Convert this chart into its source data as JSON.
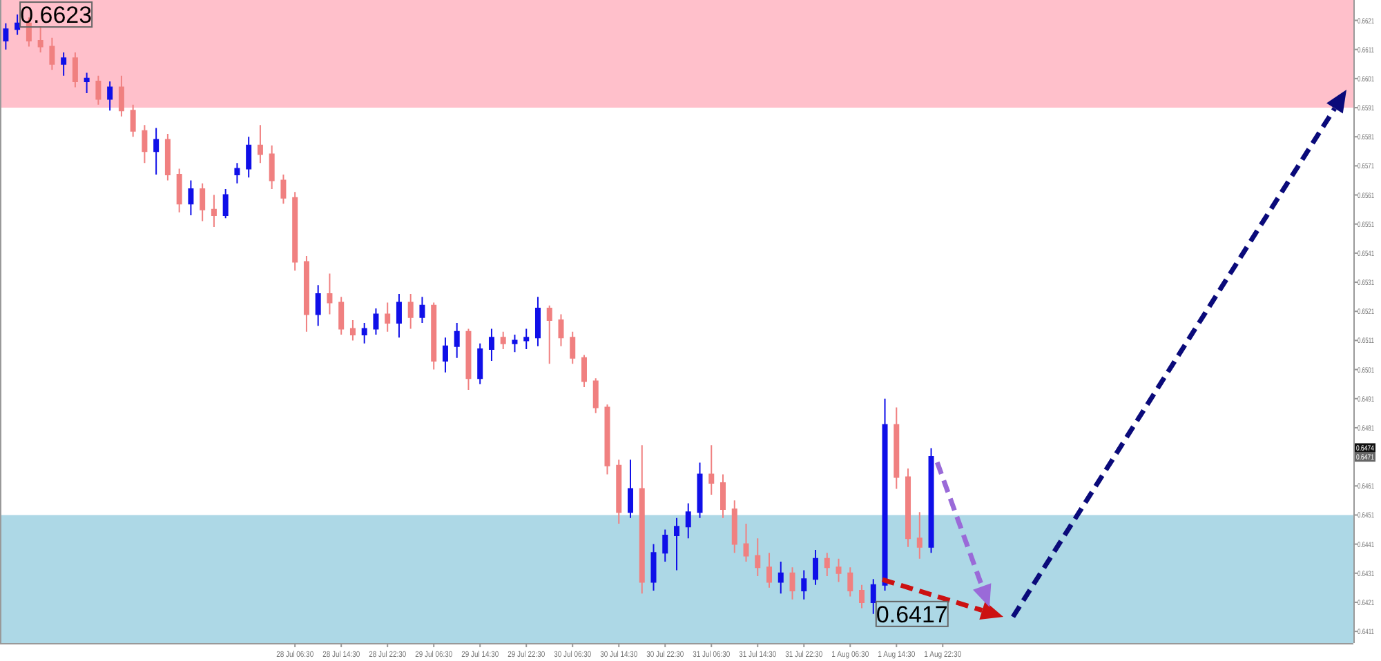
{
  "chart_data": {
    "type": "candlestick",
    "categories": [
      null,
      null,
      null,
      null,
      null,
      null,
      null,
      null,
      null,
      null,
      null,
      null,
      null,
      null,
      null,
      null,
      null,
      null,
      null,
      null,
      null,
      null,
      null,
      null,
      null,
      "28 Jul 06:30",
      null,
      null,
      null,
      "28 Jul 14:30",
      null,
      null,
      null,
      "28 Jul 22:30",
      null,
      null,
      null,
      "29 Jul 06:30",
      null,
      null,
      null,
      "29 Jul 14:30",
      null,
      null,
      null,
      "29 Jul 22:30",
      null,
      null,
      null,
      "30 Jul 06:30",
      null,
      null,
      null,
      "30 Jul 14:30",
      null,
      null,
      null,
      "30 Jul 22:30",
      null,
      null,
      null,
      "31 Jul 06:30",
      null,
      null,
      null,
      "31 Jul 14:30",
      null,
      null,
      null,
      "31 Jul 22:30",
      null,
      null,
      null,
      "1 Aug 06:30",
      null,
      null,
      null,
      "1 Aug 14:30",
      null,
      null,
      null,
      "1 Aug 22:30",
      null,
      null,
      null,
      null,
      null,
      null,
      null,
      null,
      null,
      null,
      null,
      null,
      null,
      null,
      null,
      null,
      null,
      null,
      null,
      null,
      null,
      null,
      null,
      null,
      null,
      null,
      null,
      null,
      null,
      null,
      null,
      null,
      null,
      null,
      null
    ],
    "ohlc": [
      [
        0.6614,
        0.662,
        0.6611,
        0.6618
      ],
      [
        0.6618,
        0.6623,
        0.6616,
        0.662
      ],
      [
        0.662,
        0.6622,
        0.6612,
        0.6614
      ],
      [
        0.6614,
        0.6619,
        0.661,
        0.6612
      ],
      [
        0.6612,
        0.6615,
        0.6604,
        0.6606
      ],
      [
        0.6606,
        0.661,
        0.6602,
        0.6608
      ],
      [
        0.6608,
        0.661,
        0.6598,
        0.66
      ],
      [
        0.66,
        0.6603,
        0.6596,
        0.6601
      ],
      [
        0.66,
        0.6602,
        0.6592,
        0.6594
      ],
      [
        0.6594,
        0.66,
        0.659,
        0.6598
      ],
      [
        0.6598,
        0.6602,
        0.6588,
        0.659
      ],
      [
        0.659,
        0.6592,
        0.6581,
        0.6583
      ],
      [
        0.6583,
        0.6585,
        0.6572,
        0.6576
      ],
      [
        0.6576,
        0.6584,
        0.6568,
        0.658
      ],
      [
        0.658,
        0.6582,
        0.6566,
        0.6568
      ],
      [
        0.6568,
        0.657,
        0.6555,
        0.6558
      ],
      [
        0.6558,
        0.6566,
        0.6554,
        0.6563
      ],
      [
        0.6563,
        0.6565,
        0.6552,
        0.6556
      ],
      [
        0.6556,
        0.6561,
        0.655,
        0.6554
      ],
      [
        0.6554,
        0.6563,
        0.6553,
        0.6561
      ],
      [
        0.6568,
        0.6572,
        0.6565,
        0.657
      ],
      [
        0.657,
        0.6581,
        0.6567,
        0.6578
      ],
      [
        0.6578,
        0.6585,
        0.6572,
        0.6575
      ],
      [
        0.6575,
        0.6578,
        0.6563,
        0.6566
      ],
      [
        0.6566,
        0.6568,
        0.6558,
        0.656
      ],
      [
        0.656,
        0.6562,
        0.6535,
        0.6538
      ],
      [
        0.6538,
        0.654,
        0.6514,
        0.652
      ],
      [
        0.652,
        0.653,
        0.6516,
        0.6527
      ],
      [
        0.6527,
        0.6534,
        0.652,
        0.6524
      ],
      [
        0.6524,
        0.6526,
        0.6513,
        0.6515
      ],
      [
        0.6515,
        0.6518,
        0.6511,
        0.6513
      ],
      [
        0.6513,
        0.6517,
        0.651,
        0.6515
      ],
      [
        0.6515,
        0.6522,
        0.6513,
        0.652
      ],
      [
        0.652,
        0.6524,
        0.6514,
        0.6517
      ],
      [
        0.6517,
        0.6527,
        0.6512,
        0.6524
      ],
      [
        0.6524,
        0.6527,
        0.6515,
        0.6519
      ],
      [
        0.6519,
        0.6526,
        0.6517,
        0.6523
      ],
      [
        0.6523,
        0.6524,
        0.6501,
        0.6504
      ],
      [
        0.6504,
        0.6512,
        0.65,
        0.6509
      ],
      [
        0.6509,
        0.6517,
        0.6505,
        0.6514
      ],
      [
        0.6514,
        0.6515,
        0.6494,
        0.6498
      ],
      [
        0.6498,
        0.651,
        0.6496,
        0.6508
      ],
      [
        0.6508,
        0.6515,
        0.6504,
        0.6512
      ],
      [
        0.6512,
        0.6514,
        0.6508,
        0.651
      ],
      [
        0.651,
        0.6513,
        0.6507,
        0.6511
      ],
      [
        0.6511,
        0.6515,
        0.6508,
        0.6512
      ],
      [
        0.6512,
        0.6526,
        0.6509,
        0.6522
      ],
      [
        0.6522,
        0.6523,
        0.6503,
        0.6518
      ],
      [
        0.6518,
        0.652,
        0.6509,
        0.6512
      ],
      [
        0.6512,
        0.6514,
        0.6503,
        0.6505
      ],
      [
        0.6505,
        0.6506,
        0.6495,
        0.6497
      ],
      [
        0.6497,
        0.6498,
        0.6486,
        0.6488
      ],
      [
        0.6488,
        0.6489,
        0.6465,
        0.6468
      ],
      [
        0.6468,
        0.647,
        0.6448,
        0.6452
      ],
      [
        0.6452,
        0.647,
        0.645,
        0.646
      ],
      [
        0.646,
        0.6475,
        0.6424,
        0.6428
      ],
      [
        0.6428,
        0.6441,
        0.6425,
        0.6438
      ],
      [
        0.6438,
        0.6446,
        0.6435,
        0.6444
      ],
      [
        0.6444,
        0.645,
        0.6432,
        0.6447
      ],
      [
        0.6447,
        0.6455,
        0.6443,
        0.6452
      ],
      [
        0.6452,
        0.6469,
        0.645,
        0.6465
      ],
      [
        0.6465,
        0.6475,
        0.6458,
        0.6462
      ],
      [
        0.6462,
        0.6465,
        0.645,
        0.6453
      ],
      [
        0.6453,
        0.6456,
        0.6438,
        0.6441
      ],
      [
        0.6441,
        0.6448,
        0.6435,
        0.6437
      ],
      [
        0.6437,
        0.6443,
        0.643,
        0.6433
      ],
      [
        0.6433,
        0.6438,
        0.6426,
        0.6428
      ],
      [
        0.6428,
        0.6435,
        0.6424,
        0.6431
      ],
      [
        0.6431,
        0.6433,
        0.6422,
        0.6425
      ],
      [
        0.6425,
        0.6432,
        0.6422,
        0.6429
      ],
      [
        0.6429,
        0.6439,
        0.6427,
        0.6436
      ],
      [
        0.6436,
        0.6438,
        0.643,
        0.6433
      ],
      [
        0.6433,
        0.6436,
        0.6428,
        0.6431
      ],
      [
        0.6431,
        0.6433,
        0.6423,
        0.6425
      ],
      [
        0.6425,
        0.6427,
        0.6419,
        0.6421
      ],
      [
        0.6421,
        0.6429,
        0.6417,
        0.6427
      ],
      [
        0.6427,
        0.6491,
        0.6425,
        0.6482
      ],
      [
        0.6482,
        0.6488,
        0.646,
        0.6464
      ],
      [
        0.6464,
        0.6467,
        0.644,
        0.6443
      ],
      [
        0.6443,
        0.6452,
        0.6436,
        0.644
      ],
      [
        0.644,
        0.6474,
        0.6438,
        0.6471
      ],
      null,
      null,
      null,
      null,
      null,
      null,
      null,
      null,
      null,
      null,
      null,
      null,
      null,
      null,
      null,
      null,
      null,
      null,
      null,
      null,
      null,
      null,
      null,
      null,
      null,
      null,
      null,
      null,
      null,
      null,
      null,
      null,
      null,
      null,
      null,
      null
    ],
    "ylim": [
      0.6407,
      0.6628
    ],
    "yticks": [
      0.6411,
      0.6421,
      0.6431,
      0.6441,
      0.6451,
      0.6461,
      0.6481,
      0.6491,
      0.6501,
      0.6511,
      0.6521,
      0.6531,
      0.6541,
      0.6551,
      0.6561,
      0.6571,
      0.6581,
      0.6591,
      0.6601,
      0.6611,
      0.6621
    ],
    "bands": [
      {
        "axis": "y",
        "from": 0.6591,
        "to": 0.6628,
        "color": "#ffc0cb"
      },
      {
        "axis": "y",
        "from": 0.6407,
        "to": 0.6451,
        "color": "#add8e6"
      }
    ],
    "annotations": [
      "0.6623",
      "0.6417",
      "0.6474",
      "0.6471"
    ],
    "grid": false
  }
}
